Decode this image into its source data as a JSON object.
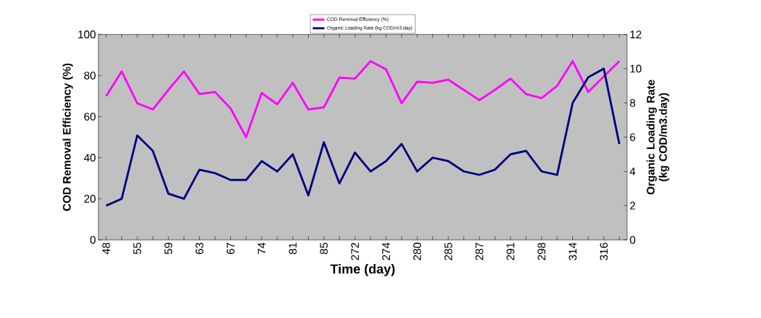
{
  "chart_data": {
    "type": "line",
    "xlabel": "Time (day)",
    "ylabel": "COD Removal Efficiency (%)",
    "y2label": "Organic Loading Rate (kg COD/m3.day)",
    "categories": [
      "48",
      null,
      "55",
      null,
      "59",
      null,
      "63",
      null,
      "67",
      null,
      "74",
      null,
      "81",
      null,
      "85",
      null,
      "272",
      null,
      "274",
      null,
      "280",
      null,
      "285",
      null,
      "287",
      null,
      "291",
      null,
      "298",
      null,
      "314",
      null,
      "316",
      null
    ],
    "series": [
      {
        "name": "COD Removal Efficiency (%)",
        "color": "#ff00ff",
        "values": [
          70,
          82,
          66.5,
          63.5,
          73,
          82,
          71,
          72,
          64,
          50,
          71.5,
          66,
          76.5,
          63.5,
          64.5,
          79,
          78.5,
          87,
          83,
          66.5,
          77,
          76.5,
          78,
          73,
          68,
          73,
          78.5,
          71,
          69,
          75,
          87,
          72,
          79.5,
          87
        ]
      },
      {
        "name": "Organic Loading Rate (kg COD/m3.day)",
        "color": "#000080",
        "axis": "y2",
        "values": [
          2.0,
          2.4,
          6.1,
          5.2,
          2.7,
          2.4,
          4.1,
          3.9,
          3.5,
          3.5,
          4.6,
          4.0,
          5.0,
          2.6,
          5.7,
          3.3,
          5.1,
          4.0,
          4.6,
          5.6,
          4.0,
          4.8,
          4.6,
          4.0,
          3.8,
          4.1,
          5.0,
          5.2,
          4.0,
          3.8,
          8.0,
          9.5,
          10.0,
          5.6
        ]
      }
    ],
    "ylim": [
      0,
      100
    ],
    "yticks": [
      0,
      20,
      40,
      60,
      80,
      100
    ],
    "y2lim": [
      0,
      12
    ],
    "y2ticks": [
      0,
      2,
      4,
      6,
      8,
      10,
      12
    ],
    "legend": "top"
  }
}
